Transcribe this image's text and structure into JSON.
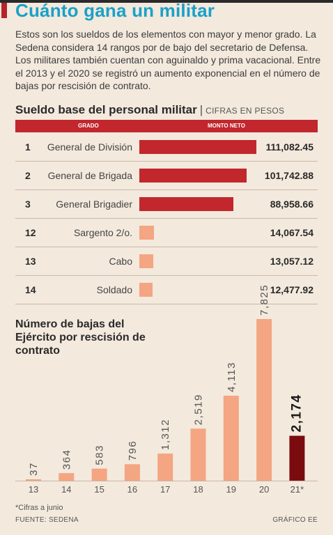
{
  "title": "Cuánto gana un militar",
  "intro": "Estos son los sueldos de los elementos con mayor y menor grado. La Sedena considera 14 rangos por de bajo del secretario de Defensa. Los militares también cuentan con aguinaldo y prima vacacional. Entre el 2013 y el 2020 se registró un aumento exponencial en el número de bajas por rescisión de contrato.",
  "salary_section": {
    "title": "Sueldo base del personal militar",
    "subtitle": "CIFRAS EN PESOS",
    "col_grado": "GRADO",
    "col_monto": "MONTO NETO"
  },
  "colors": {
    "accent_blue": "#1aa1c7",
    "header_red": "#c1272d",
    "bar_dark": "#c1272d",
    "bar_light": "#f4a582",
    "bar_highlight": "#7a0c10",
    "background": "#f3e9dd"
  },
  "chart_data": [
    {
      "type": "bar",
      "title": "Sueldo base del personal militar",
      "unit": "CIFRAS EN PESOS",
      "orientation": "horizontal",
      "rows": [
        {
          "rank": "1",
          "label": "General de División",
          "value": 111082.45,
          "display": "111,082.45"
        },
        {
          "rank": "2",
          "label": "General de Brigada",
          "value": 101742.88,
          "display": "101,742.88"
        },
        {
          "rank": "3",
          "label": "General Brigadier",
          "value": 88958.66,
          "display": "88,958.66"
        },
        {
          "rank": "12",
          "label": "Sargento 2/o.",
          "value": 14067.54,
          "display": "14,067.54"
        },
        {
          "rank": "13",
          "label": "Cabo",
          "value": 13057.12,
          "display": "13,057.12"
        },
        {
          "rank": "14",
          "label": "Soldado",
          "value": 12477.92,
          "display": "12,477.92"
        }
      ],
      "xlim": [
        0,
        111082.45
      ]
    },
    {
      "type": "bar",
      "title": "Número de bajas del Ejército por rescisión de contrato",
      "categories": [
        "13",
        "14",
        "15",
        "16",
        "17",
        "18",
        "19",
        "20",
        "21*"
      ],
      "values": [
        37,
        364,
        583,
        796,
        1312,
        2519,
        4113,
        7825,
        2174
      ],
      "labels": [
        "37",
        "364",
        "583",
        "796",
        "1,312",
        "2,519",
        "4,113",
        "7,825",
        "2,174"
      ],
      "highlight": "21*",
      "ylim": [
        0,
        7825
      ],
      "grid": false
    }
  ],
  "footnote": "*Cifras a junio",
  "source": "FUENTE: SEDENA",
  "credit": "GRÁFICO EE"
}
